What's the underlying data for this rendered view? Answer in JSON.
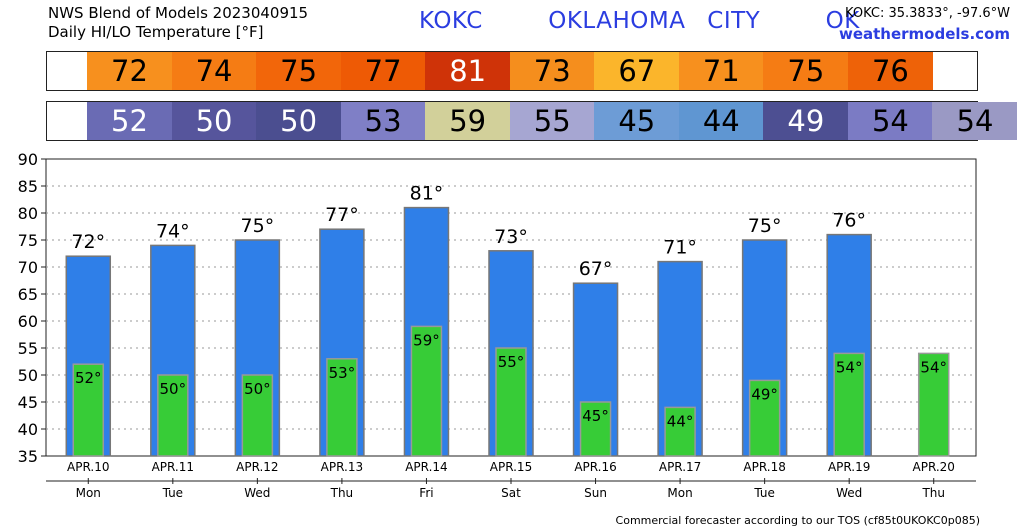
{
  "header": {
    "title_line1": "NWS Blend of Models 2023040915",
    "title_line2": "Daily HI/LO Temperature [°F]",
    "station_line": "KOKC   OKLAHOMA CITY   OK",
    "coords": "KOKC: 35.3833°, -97.6°W",
    "site": "weathermodels.com"
  },
  "footer": {
    "text": "Commercial forecaster according to our TOS (cf85t0UKOKC0p085)"
  },
  "colors": {
    "hi_bar": "#2f7fe8",
    "lo_bar": "#37cc37",
    "hi_cells": [
      "#f7901e",
      "#f57c14",
      "#f2660a",
      "#ee5a05",
      "#cf3308",
      "#f58e1d",
      "#fbb52b",
      "#f7901e",
      "#f57c14",
      "#ee6208"
    ],
    "lo_cells": [
      "#6a6bb4",
      "#56559c",
      "#4b4e90",
      "#7f7fc6",
      "#d2d09a",
      "#a6a6d2",
      "#6d9cd6",
      "#5f96d2",
      "#4d4f92",
      "#7b7bc4",
      "#9a99c4"
    ]
  },
  "chart_data": {
    "type": "bar",
    "categories": [
      "APR.10",
      "APR.11",
      "APR.12",
      "APR.13",
      "APR.14",
      "APR.15",
      "APR.16",
      "APR.17",
      "APR.18",
      "APR.19",
      "APR.20"
    ],
    "weekdays": [
      "Mon",
      "Tue",
      "Wed",
      "Thu",
      "Fri",
      "Sat",
      "Sun",
      "Mon",
      "Tue",
      "Wed",
      "Thu"
    ],
    "series": [
      {
        "values": [
          72,
          74,
          75,
          77,
          81,
          73,
          67,
          71,
          75,
          76,
          null
        ]
      },
      {
        "values": [
          52,
          50,
          50,
          53,
          59,
          55,
          45,
          44,
          49,
          54,
          54
        ]
      }
    ],
    "hi_labels": [
      "72°",
      "74°",
      "75°",
      "77°",
      "81°",
      "73°",
      "67°",
      "71°",
      "75°",
      "76°",
      ""
    ],
    "lo_labels": [
      "52°",
      "50°",
      "50°",
      "53°",
      "59°",
      "55°",
      "45°",
      "44°",
      "49°",
      "54°",
      "54°"
    ],
    "hi_strip": [
      "72",
      "74",
      "75",
      "77",
      "81",
      "73",
      "67",
      "71",
      "75",
      "76",
      ""
    ],
    "lo_strip": [
      "52",
      "50",
      "50",
      "53",
      "59",
      "55",
      "45",
      "44",
      "49",
      "54",
      "54"
    ],
    "yticks": [
      "35",
      "40",
      "45",
      "50",
      "55",
      "60",
      "65",
      "70",
      "75",
      "80",
      "85",
      "90"
    ],
    "ylim": [
      35,
      90
    ],
    "grid": true
  }
}
